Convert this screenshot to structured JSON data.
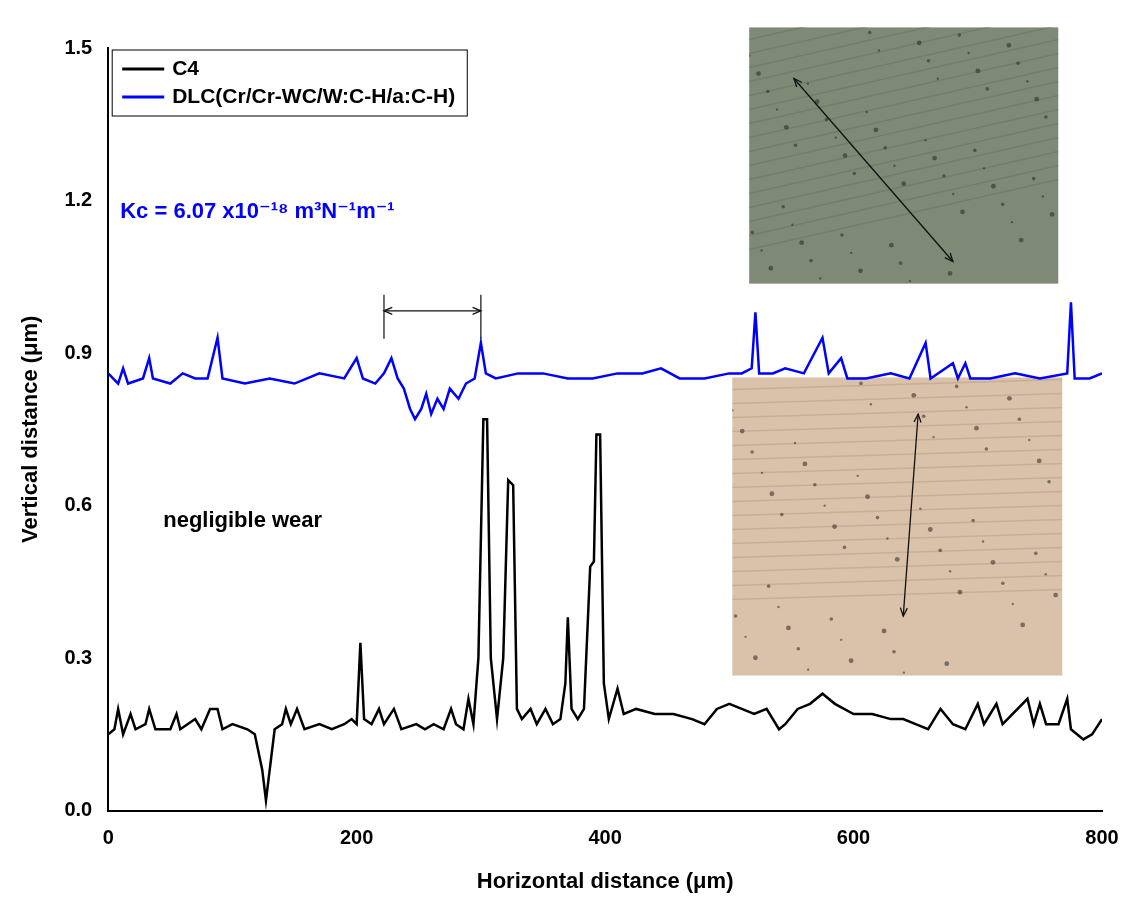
{
  "chart_data": {
    "type": "line",
    "x_label": "Horizontal distance (μm)",
    "y_label": "Vertical distance (μm)",
    "xlim": [
      0,
      800
    ],
    "xticks": [
      0,
      200,
      400,
      600,
      800
    ],
    "ylim": [
      0,
      1.5
    ],
    "yticks": [
      {
        "value": 0,
        "label": "0.0"
      },
      0.3,
      0.6,
      0.9,
      1.2,
      1.5
    ],
    "grid": false,
    "legend": "upper left",
    "annotations": [
      {
        "text": "Kc = 6.07 x10⁻¹⁸ m³N⁻¹m⁻¹",
        "color": "#0000ff"
      },
      {
        "text": "negligible wear",
        "color": "#000000"
      }
    ],
    "wear_track": [
      222,
      300
    ],
    "series": [
      {
        "name": "C4",
        "color": "#000000",
        "x": [
          0,
          5,
          8,
          12,
          18,
          22,
          30,
          33,
          38,
          50,
          55,
          58,
          70,
          75,
          82,
          88,
          92,
          100,
          112,
          118,
          124,
          127,
          130,
          134,
          140,
          143,
          147,
          152,
          158,
          170,
          180,
          190,
          196,
          200,
          203,
          206,
          212,
          218,
          222,
          230,
          236,
          248,
          255,
          262,
          270,
          276,
          280,
          286,
          290,
          294,
          298,
          302,
          305,
          308,
          313,
          318,
          322,
          326,
          329,
          333,
          340,
          345,
          352,
          358,
          364,
          368,
          370,
          373,
          378,
          383,
          388,
          391,
          393,
          396,
          399,
          403,
          410,
          415,
          425,
          440,
          455,
          470,
          480,
          490,
          500,
          510,
          520,
          530,
          540,
          545,
          555,
          565,
          575,
          585,
          600,
          615,
          630,
          640,
          650,
          660,
          670,
          680,
          690,
          700,
          705,
          715,
          720,
          740,
          745,
          750,
          755,
          765,
          772,
          775,
          785,
          792,
          800
        ],
        "values": [
          0.15,
          0.16,
          0.2,
          0.15,
          0.19,
          0.16,
          0.17,
          0.2,
          0.16,
          0.16,
          0.19,
          0.16,
          0.18,
          0.16,
          0.2,
          0.2,
          0.16,
          0.17,
          0.16,
          0.15,
          0.08,
          0.02,
          0.08,
          0.16,
          0.17,
          0.2,
          0.17,
          0.2,
          0.16,
          0.17,
          0.16,
          0.17,
          0.18,
          0.17,
          0.33,
          0.18,
          0.17,
          0.2,
          0.17,
          0.2,
          0.16,
          0.17,
          0.16,
          0.17,
          0.16,
          0.2,
          0.17,
          0.16,
          0.22,
          0.17,
          0.3,
          0.77,
          0.77,
          0.3,
          0.18,
          0.3,
          0.65,
          0.64,
          0.2,
          0.18,
          0.2,
          0.17,
          0.2,
          0.17,
          0.18,
          0.25,
          0.38,
          0.2,
          0.18,
          0.2,
          0.48,
          0.49,
          0.74,
          0.74,
          0.25,
          0.18,
          0.24,
          0.19,
          0.2,
          0.19,
          0.19,
          0.18,
          0.17,
          0.2,
          0.21,
          0.2,
          0.19,
          0.2,
          0.16,
          0.17,
          0.2,
          0.21,
          0.23,
          0.21,
          0.19,
          0.19,
          0.18,
          0.18,
          0.17,
          0.16,
          0.2,
          0.17,
          0.16,
          0.21,
          0.17,
          0.21,
          0.17,
          0.22,
          0.17,
          0.21,
          0.17,
          0.17,
          0.22,
          0.16,
          0.14,
          0.15,
          0.18
        ]
      },
      {
        "name": "DLC(Cr/Cr-WC/W:C-H/a:C-H)",
        "color": "#0000ff",
        "x": [
          0,
          8,
          12,
          16,
          28,
          33,
          36,
          50,
          60,
          70,
          80,
          88,
          92,
          110,
          130,
          150,
          170,
          190,
          200,
          205,
          215,
          222,
          228,
          233,
          238,
          243,
          247,
          252,
          256,
          260,
          265,
          270,
          275,
          282,
          288,
          295,
          300,
          304,
          312,
          330,
          350,
          370,
          390,
          410,
          430,
          445,
          460,
          480,
          500,
          510,
          518,
          521,
          524,
          535,
          545,
          560,
          575,
          580,
          590,
          595,
          610,
          630,
          645,
          658,
          662,
          680,
          684,
          690,
          694,
          710,
          730,
          750,
          772,
          775,
          778,
          790,
          800
        ],
        "values": [
          0.86,
          0.84,
          0.87,
          0.84,
          0.85,
          0.89,
          0.85,
          0.84,
          0.86,
          0.85,
          0.85,
          0.93,
          0.85,
          0.84,
          0.85,
          0.84,
          0.86,
          0.85,
          0.89,
          0.85,
          0.84,
          0.86,
          0.89,
          0.85,
          0.83,
          0.79,
          0.77,
          0.79,
          0.82,
          0.78,
          0.81,
          0.79,
          0.83,
          0.81,
          0.84,
          0.85,
          0.92,
          0.86,
          0.85,
          0.86,
          0.86,
          0.85,
          0.85,
          0.86,
          0.86,
          0.87,
          0.85,
          0.85,
          0.86,
          0.86,
          0.87,
          0.98,
          0.86,
          0.86,
          0.87,
          0.86,
          0.93,
          0.86,
          0.89,
          0.85,
          0.85,
          0.86,
          0.85,
          0.92,
          0.85,
          0.88,
          0.85,
          0.88,
          0.85,
          0.85,
          0.86,
          0.85,
          0.86,
          1.0,
          0.85,
          0.85,
          0.86
        ]
      }
    ]
  }
}
